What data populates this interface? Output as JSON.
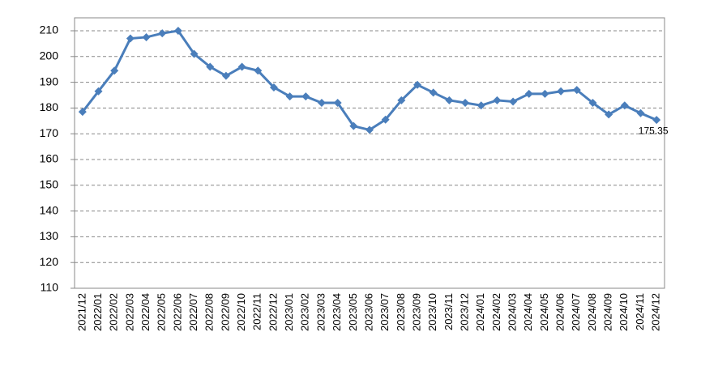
{
  "chart_data": {
    "type": "line",
    "categories": [
      "2021/12",
      "2022/01",
      "2022/02",
      "2022/03",
      "2022/04",
      "2022/05",
      "2022/06",
      "2022/07",
      "2022/08",
      "2022/09",
      "2022/10",
      "2022/11",
      "2022/12",
      "2023/01",
      "2023/02",
      "2023/03",
      "2023/04",
      "2023/05",
      "2023/06",
      "2023/07",
      "2023/08",
      "2023/09",
      "2023/10",
      "2023/11",
      "2023/12",
      "2024/01",
      "2024/02",
      "2024/03",
      "2024/04",
      "2024/05",
      "2024/06",
      "2024/07",
      "2024/08",
      "2024/09",
      "2024/10",
      "2024/11",
      "2024/12"
    ],
    "values": [
      178.5,
      186.5,
      194.5,
      207,
      207.5,
      209,
      210,
      201,
      196,
      192.5,
      196,
      194.5,
      188,
      184.5,
      184.5,
      182,
      182,
      173,
      171.5,
      175.5,
      183,
      189,
      186,
      183,
      182,
      181,
      183,
      182.5,
      185.5,
      185.5,
      186.5,
      187,
      182,
      177.5,
      181,
      178,
      175.35
    ],
    "color": "#4a7ebb",
    "ylim": [
      110,
      210
    ],
    "yticks": [
      110,
      120,
      130,
      140,
      150,
      160,
      170,
      180,
      190,
      200,
      210
    ],
    "grid": true
  }
}
